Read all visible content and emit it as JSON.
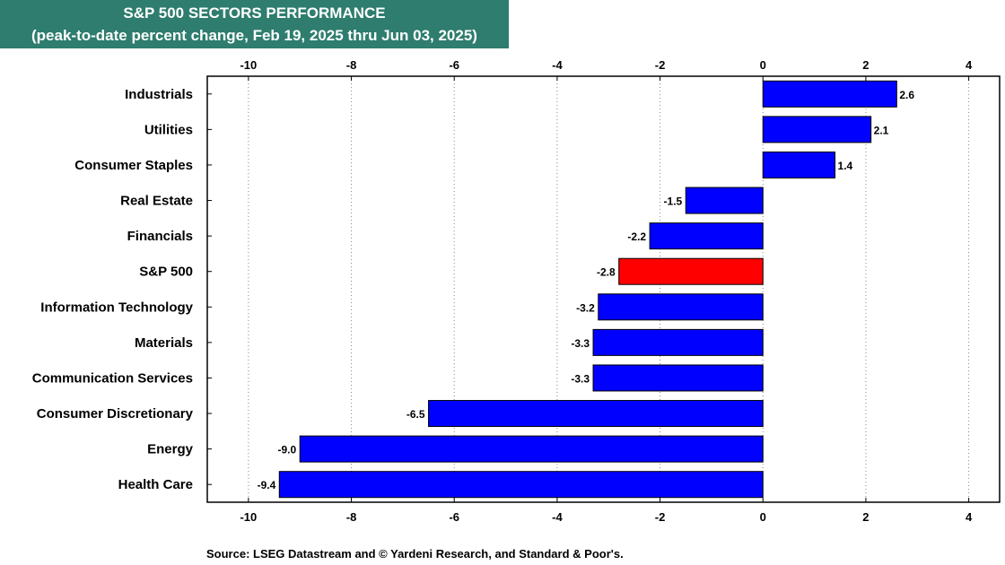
{
  "chart_data": {
    "type": "bar",
    "orientation": "horizontal",
    "title": "S&P 500 SECTORS PERFORMANCE",
    "subtitle": "(peak-to-date percent change, Feb 19, 2025 thru Jun 03, 2025)",
    "categories": [
      "Industrials",
      "Utilities",
      "Consumer Staples",
      "Real Estate",
      "Financials",
      "S&P 500",
      "Information Technology",
      "Materials",
      "Communication Services",
      "Consumer Discretionary",
      "Energy",
      "Health Care"
    ],
    "values": [
      2.6,
      2.1,
      1.4,
      -1.5,
      -2.2,
      -2.8,
      -3.2,
      -3.3,
      -3.3,
      -6.5,
      -9.0,
      -9.4
    ],
    "value_labels": [
      "2.6",
      "2.1",
      "1.4",
      "-1.5",
      "-2.2",
      "-2.8",
      "-3.2",
      "-3.3",
      "-3.3",
      "-6.5",
      "-9.0",
      "-9.4"
    ],
    "highlight_category": "S&P 500",
    "xlim": [
      -10.8,
      4.6
    ],
    "xticks": [
      -10,
      -8,
      -6,
      -4,
      -2,
      0,
      2,
      4
    ],
    "xtick_labels": [
      "-10",
      "-8",
      "-6",
      "-4",
      "-2",
      "0",
      "2",
      "4"
    ],
    "grid": "vertical dotted",
    "colors": {
      "bar": "#0000ff",
      "highlight": "#ff0000",
      "title_bg": "#2e7d6e",
      "title_text": "#ffffff",
      "grid": "#888888"
    }
  },
  "source": "Source: LSEG Datastream and © Yardeni Research, and Standard & Poor's."
}
